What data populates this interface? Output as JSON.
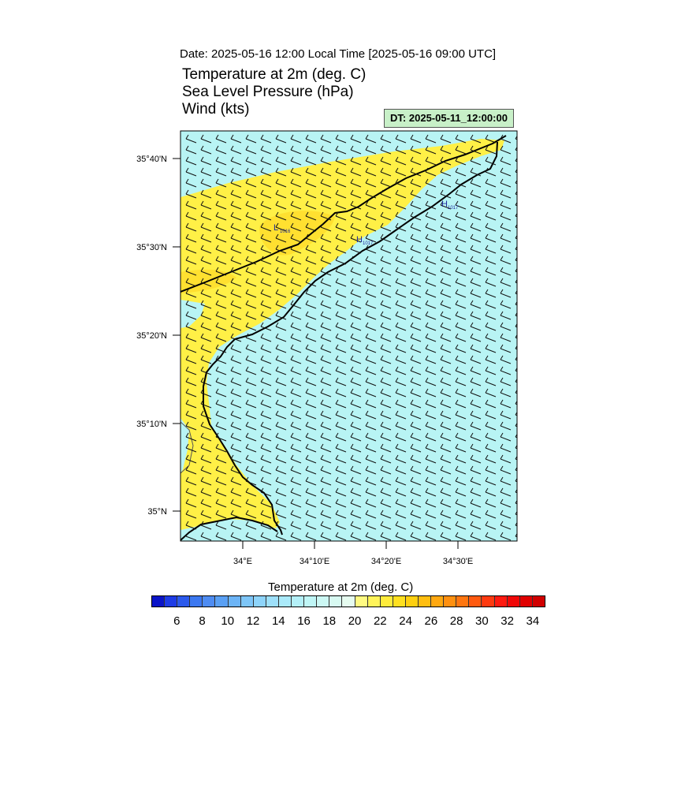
{
  "header": {
    "date_line": "Date: 2025-05-16  12:00 Local Time [2025-05-16  09:00 UTC]",
    "title_1": "Temperature at 2m   (deg. C)",
    "title_2": "Sea Level Pressure   (hPa)",
    "title_3": "Wind   (kts)",
    "dt_badge": "DT: 2025-05-11_12:00:00"
  },
  "map": {
    "lat_labels": [
      "35°40'N",
      "35°30'N",
      "35°20'N",
      "35°10'N",
      "35°N"
    ],
    "lon_labels": [
      "34°E",
      "34°10'E",
      "34°20'E",
      "34°30'E"
    ],
    "pressure_centers": [
      {
        "type": "L",
        "value": "1016"
      },
      {
        "type": "H",
        "value": "1017"
      },
      {
        "type": "H",
        "value": "1017"
      }
    ],
    "colors": {
      "sea_fill": "#b8f4f4",
      "warm_fill": "#fff046",
      "hot_fill": "#ffe030",
      "coast": "#000000",
      "pressure_label": "#1e2a9c",
      "wind_barb": "#111111"
    }
  },
  "colorbar": {
    "title": "Temperature at 2m  (deg. C)",
    "labels": [
      "6",
      "8",
      "10",
      "12",
      "14",
      "16",
      "18",
      "20",
      "22",
      "24",
      "26",
      "28",
      "30",
      "32",
      "34"
    ],
    "colors": [
      "#0a14c8",
      "#1e3ce6",
      "#2c5aec",
      "#3c78f0",
      "#4e8cf2",
      "#5aa0f4",
      "#6cb4f6",
      "#7ec6f8",
      "#8ed4fa",
      "#9ee0fa",
      "#aaeafa",
      "#b4f0f8",
      "#c0f6f6",
      "#ccf8f4",
      "#d8faf2",
      "#e6fcf0",
      "#fffa82",
      "#fff45a",
      "#ffec3c",
      "#ffe020",
      "#ffd010",
      "#ffbe10",
      "#ffa810",
      "#ff9010",
      "#ff7610",
      "#ff5a10",
      "#ff3a10",
      "#ff1a10",
      "#f00808",
      "#e00000",
      "#d00000"
    ]
  }
}
